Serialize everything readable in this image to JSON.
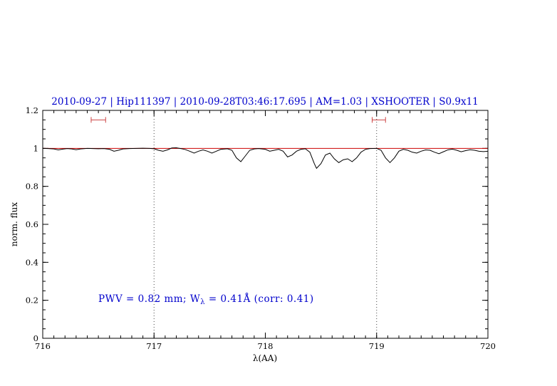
{
  "window": {
    "background": "#ffffff"
  },
  "header": {
    "title": "2010-09-27 | Hip111397 | 2010-09-28T03:46:17.695 | AM=1.03 | XSHOOTER | S0.9x11",
    "title_color": "#0000cc"
  },
  "chart_data": {
    "type": "line",
    "title": "2010-09-27 | Hip111397 | 2010-09-28T03:46:17.695 | AM=1.03 | XSHOOTER | S0.9x11",
    "xlabel": "λ(AA)",
    "ylabel": "norm. flux",
    "xlim": [
      716,
      720
    ],
    "ylim": [
      0,
      1.2
    ],
    "grid": "off",
    "x_ticks": [
      [
        716,
        "716"
      ],
      [
        717,
        "717"
      ],
      [
        718,
        "718"
      ],
      [
        719,
        "719"
      ],
      [
        720,
        "720"
      ]
    ],
    "y_ticks": [
      [
        0,
        "0"
      ],
      [
        0.2,
        "0.2"
      ],
      [
        0.4,
        "0.4"
      ],
      [
        0.6,
        "0.6"
      ],
      [
        0.8,
        "0.8"
      ],
      [
        1,
        "1"
      ],
      [
        1.2,
        "1.2"
      ]
    ],
    "x_minor_step": 0.1,
    "y_minor_step": 0.05,
    "vlines": {
      "x": [
        717,
        719
      ],
      "style": "dotted",
      "color": "#444444"
    },
    "continuum": {
      "y": 1.0,
      "color": "#cc0000"
    },
    "range_markers": {
      "color": "#cc4444",
      "items": [
        {
          "center": 716.5,
          "halfwidth": 0.065,
          "y": 1.15
        },
        {
          "center": 719.02,
          "halfwidth": 0.06,
          "y": 1.15
        }
      ]
    },
    "annotation": {
      "prefix": "PWV = 0.82 mm; W",
      "sub": "λ",
      "suffix": " = 0.41Å (corr: 0.41)",
      "color": "#0000cc",
      "x": 716.5,
      "y": 0.2
    },
    "series": [
      {
        "name": "normalized-spectrum",
        "color": "#000000",
        "points": [
          [
            716.0,
            1.0
          ],
          [
            716.05,
            0.999
          ],
          [
            716.1,
            0.997
          ],
          [
            716.14,
            0.992
          ],
          [
            716.18,
            0.996
          ],
          [
            716.22,
            0.999
          ],
          [
            716.26,
            0.997
          ],
          [
            716.3,
            0.993
          ],
          [
            716.34,
            0.997
          ],
          [
            716.4,
            1.0
          ],
          [
            716.45,
            0.999
          ],
          [
            716.5,
            0.998
          ],
          [
            716.55,
            0.999
          ],
          [
            716.6,
            0.995
          ],
          [
            716.64,
            0.985
          ],
          [
            716.68,
            0.99
          ],
          [
            716.72,
            0.997
          ],
          [
            716.78,
            0.999
          ],
          [
            716.84,
            1.0
          ],
          [
            716.9,
            1.001
          ],
          [
            716.96,
            1.0
          ],
          [
            717.0,
            0.998
          ],
          [
            717.04,
            0.99
          ],
          [
            717.08,
            0.985
          ],
          [
            717.12,
            0.992
          ],
          [
            717.16,
            1.002
          ],
          [
            717.2,
            1.003
          ],
          [
            717.24,
            0.999
          ],
          [
            717.28,
            0.994
          ],
          [
            717.32,
            0.985
          ],
          [
            717.36,
            0.975
          ],
          [
            717.4,
            0.985
          ],
          [
            717.44,
            0.992
          ],
          [
            717.48,
            0.985
          ],
          [
            717.52,
            0.975
          ],
          [
            717.56,
            0.985
          ],
          [
            717.6,
            0.995
          ],
          [
            717.66,
            0.998
          ],
          [
            717.7,
            0.99
          ],
          [
            717.74,
            0.95
          ],
          [
            717.78,
            0.93
          ],
          [
            717.82,
            0.96
          ],
          [
            717.86,
            0.99
          ],
          [
            717.9,
            0.997
          ],
          [
            717.94,
            0.999
          ],
          [
            718.0,
            0.995
          ],
          [
            718.04,
            0.985
          ],
          [
            718.08,
            0.99
          ],
          [
            718.12,
            0.995
          ],
          [
            718.16,
            0.985
          ],
          [
            718.2,
            0.955
          ],
          [
            718.24,
            0.965
          ],
          [
            718.28,
            0.985
          ],
          [
            718.32,
            0.995
          ],
          [
            718.36,
            0.998
          ],
          [
            718.4,
            0.98
          ],
          [
            718.44,
            0.92
          ],
          [
            718.46,
            0.895
          ],
          [
            718.5,
            0.92
          ],
          [
            718.54,
            0.965
          ],
          [
            718.58,
            0.975
          ],
          [
            718.62,
            0.945
          ],
          [
            718.66,
            0.925
          ],
          [
            718.7,
            0.94
          ],
          [
            718.74,
            0.945
          ],
          [
            718.78,
            0.93
          ],
          [
            718.82,
            0.95
          ],
          [
            718.86,
            0.98
          ],
          [
            718.9,
            0.995
          ],
          [
            718.94,
            0.999
          ],
          [
            719.0,
            1.0
          ],
          [
            719.04,
            0.99
          ],
          [
            719.08,
            0.95
          ],
          [
            719.12,
            0.925
          ],
          [
            719.16,
            0.95
          ],
          [
            719.2,
            0.985
          ],
          [
            719.24,
            0.995
          ],
          [
            719.28,
            0.99
          ],
          [
            719.32,
            0.98
          ],
          [
            719.36,
            0.975
          ],
          [
            719.4,
            0.985
          ],
          [
            719.44,
            0.992
          ],
          [
            719.48,
            0.99
          ],
          [
            719.52,
            0.98
          ],
          [
            719.56,
            0.972
          ],
          [
            719.6,
            0.982
          ],
          [
            719.64,
            0.992
          ],
          [
            719.68,
            0.996
          ],
          [
            719.72,
            0.99
          ],
          [
            719.76,
            0.982
          ],
          [
            719.8,
            0.988
          ],
          [
            719.84,
            0.993
          ],
          [
            719.88,
            0.99
          ],
          [
            719.92,
            0.985
          ],
          [
            719.96,
            0.983
          ],
          [
            720.0,
            0.985
          ]
        ]
      }
    ]
  }
}
